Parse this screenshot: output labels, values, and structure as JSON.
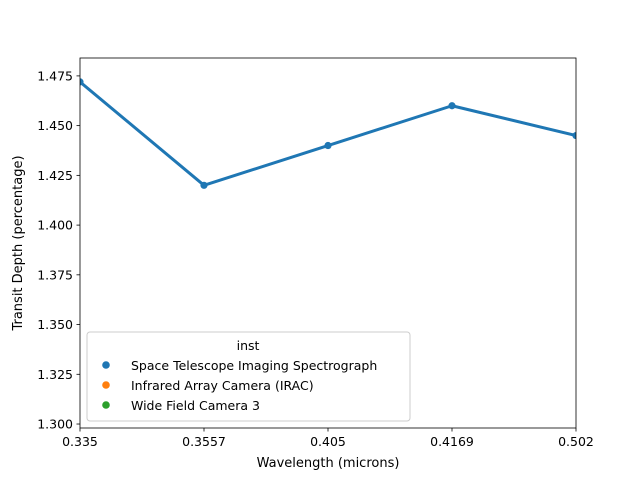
{
  "chart_data": {
    "type": "line",
    "xlabel": "Wavelength (microns)",
    "ylabel": "Transit Depth (percentage)",
    "x_axis_kind": "categorical",
    "categories": [
      "0.335",
      "0.3557",
      "0.405",
      "0.4169",
      "0.502"
    ],
    "series": [
      {
        "name": "Space Telescope Imaging Spectrograph",
        "color": "#1f77b4",
        "values": [
          1.472,
          1.42,
          1.44,
          1.46,
          1.445
        ]
      }
    ],
    "ylim": [
      1.298,
      1.484
    ],
    "yticks": [
      1.3,
      1.325,
      1.35,
      1.375,
      1.4,
      1.425,
      1.45,
      1.475
    ],
    "ytick_labels": [
      "1.300",
      "1.325",
      "1.350",
      "1.375",
      "1.400",
      "1.425",
      "1.450",
      "1.475"
    ],
    "grid": false,
    "legend": {
      "title": "inst",
      "placement": "lower-left",
      "entries": [
        {
          "label": "Space Telescope Imaging Spectrograph",
          "color": "#1f77b4"
        },
        {
          "label": "Infrared Array Camera (IRAC)",
          "color": "#ff7f0e"
        },
        {
          "label": "Wide Field Camera 3",
          "color": "#2ca02c"
        }
      ]
    }
  }
}
